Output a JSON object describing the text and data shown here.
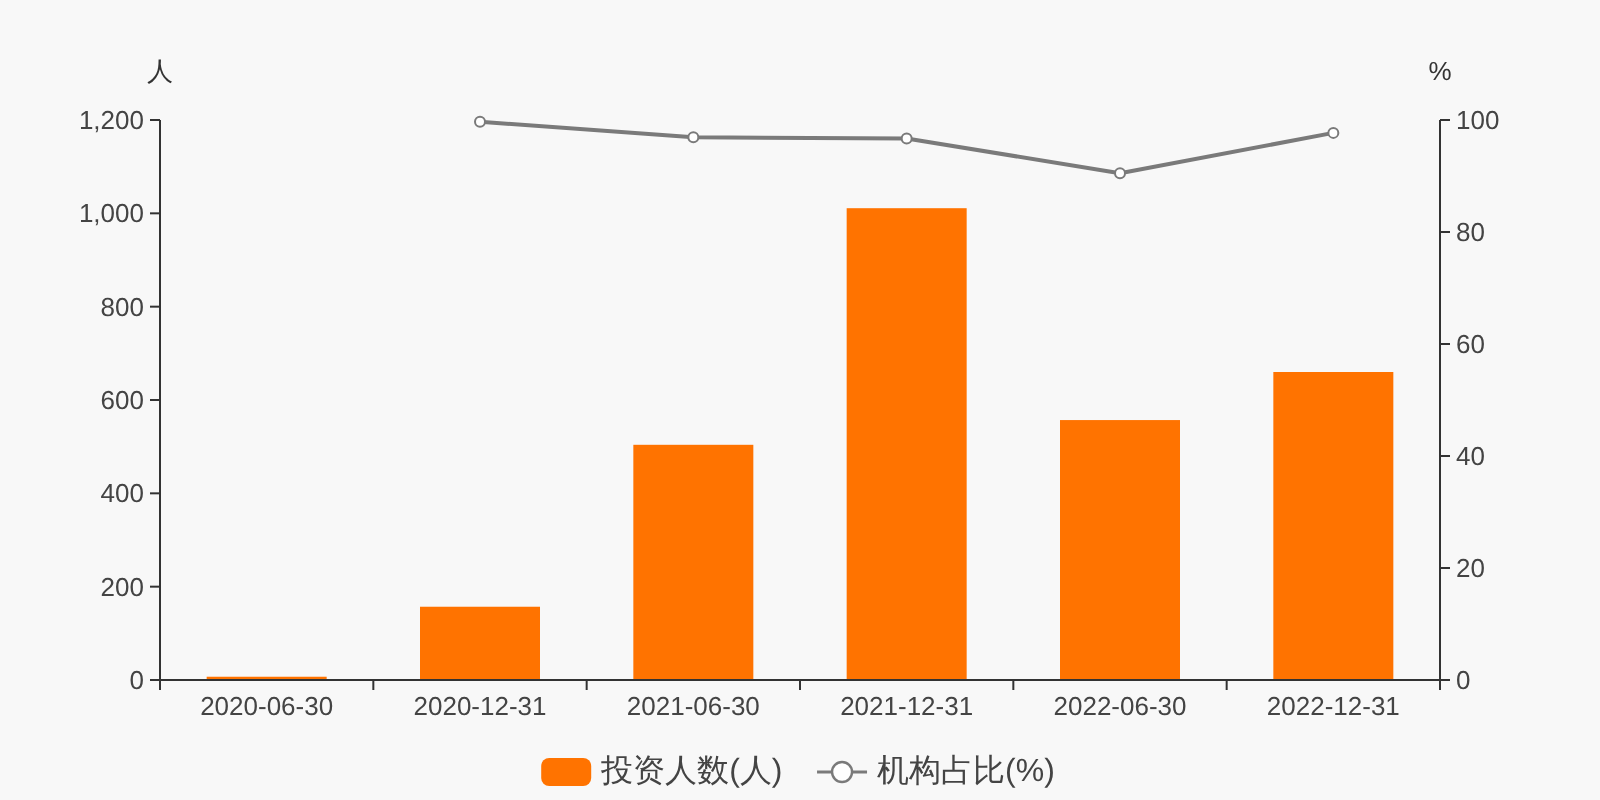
{
  "chart_data": {
    "type": "bar",
    "categories": [
      "2020-06-30",
      "2020-12-31",
      "2021-06-30",
      "2021-12-31",
      "2022-06-30",
      "2022-12-31"
    ],
    "ylabel": "人",
    "y2label": "%",
    "ylim": [
      0,
      1200
    ],
    "yticks": [
      0,
      200,
      400,
      600,
      800,
      {
        "value": 1000,
        "label": "1,000"
      },
      {
        "value": 1200,
        "label": "1,200"
      }
    ],
    "y2lim": [
      0,
      100
    ],
    "y2ticks": [
      0,
      20,
      40,
      60,
      80,
      100
    ],
    "legend": "bottom",
    "marker": "circle",
    "line_style": "solid",
    "series": [
      {
        "name": "投资人数(人)",
        "color": "#ff7300",
        "values": [
          7,
          157,
          504,
          1011,
          557,
          660
        ]
      },
      {
        "name": "机构占比(%)",
        "type": "line",
        "axis": "y2",
        "color": "#7a7a7a",
        "values": [
          null,
          99.7,
          96.9,
          96.7,
          90.5,
          97.7
        ]
      }
    ]
  }
}
